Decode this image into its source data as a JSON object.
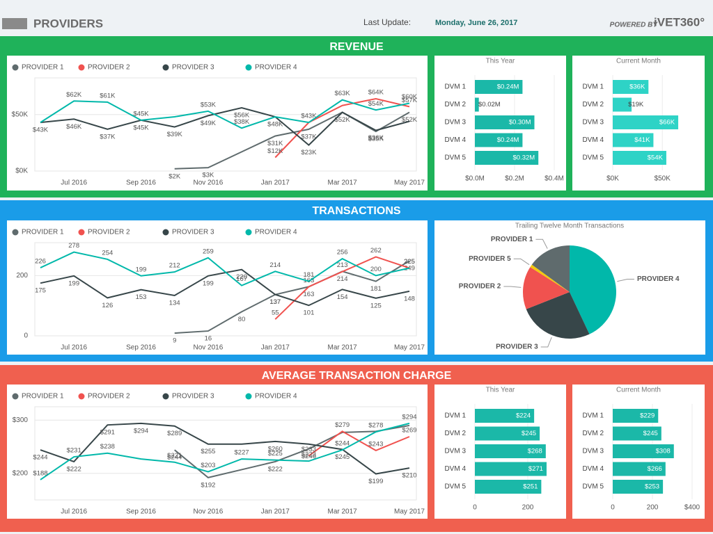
{
  "header": {
    "title": "PROVIDERS",
    "update_label": "Last Update:",
    "update_date": "Monday, June 26, 2017",
    "powered_by": "POWERED BY",
    "brand": "iVET360°"
  },
  "sections": [
    "REVENUE",
    "TRANSACTIONS",
    "AVERAGE TRANSACTION CHARGE"
  ],
  "chart_data": [
    {
      "type": "line",
      "categories": [
        null,
        "Jul 2016",
        null,
        "Sep 2016",
        null,
        "Nov 2016",
        null,
        "Jan 2017",
        null,
        "Mar 2017",
        null,
        "May 2017"
      ],
      "ylim": [
        0,
        80
      ],
      "yticks": [
        {
          "value": 0,
          "label": "$0K"
        },
        {
          "value": 50,
          "label": "$50K"
        }
      ],
      "grid": true,
      "series": [
        {
          "name": "PROVIDER 1",
          "color": "#5f6b6d",
          "values": [
            null,
            null,
            null,
            null,
            2,
            3,
            17,
            31,
            37,
            52,
            35,
            52
          ],
          "value_labels": [
            null,
            null,
            null,
            null,
            "$2K",
            "$3K",
            null,
            "$31K",
            "$37K",
            "$52K",
            "$35K",
            "$52K"
          ]
        },
        {
          "name": "PROVIDER 2",
          "color": "#f0524f",
          "values": [
            null,
            null,
            null,
            null,
            null,
            null,
            null,
            12,
            43,
            58,
            64,
            57
          ],
          "value_labels": [
            null,
            null,
            null,
            null,
            null,
            null,
            null,
            "$12K",
            "$43K",
            null,
            "$64K",
            "$57K"
          ]
        },
        {
          "name": "PROVIDER 3",
          "color": "#374649",
          "values": [
            43,
            46,
            37,
            45,
            39,
            49,
            56,
            48,
            23,
            52,
            36,
            44
          ],
          "value_labels": [
            "$43K",
            "$46K",
            "$37K",
            "$45K",
            "$39K",
            "$49K",
            "$56K",
            "$48K",
            "$23K",
            null,
            "$36K",
            null
          ]
        },
        {
          "name": "PROVIDER 4",
          "color": "#01b8aa",
          "values": [
            43,
            62,
            61,
            45,
            48,
            53,
            38,
            48,
            43,
            63,
            54,
            60
          ],
          "value_labels": [
            null,
            "$62K",
            "$61K",
            "$45K",
            null,
            "$53K",
            "$38K",
            null,
            null,
            "$63K",
            "$54K",
            "$60K"
          ]
        }
      ]
    },
    {
      "type": "hbar",
      "title": "This Year",
      "categories": [
        "DVM 1",
        "DVM 2",
        "DVM 3",
        "DVM 4",
        "DVM 5"
      ],
      "color": "#1bb8a8",
      "values": [
        0.24,
        0.02,
        0.3,
        0.24,
        0.32
      ],
      "value_labels": [
        "$0.24M",
        "$0.02M",
        "$0.30M",
        "$0.24M",
        "$0.32M"
      ],
      "xlim": [
        0,
        0.4
      ],
      "xticks": [
        {
          "value": 0,
          "label": "$0.0M"
        },
        {
          "value": 0.2,
          "label": "$0.2M"
        },
        {
          "value": 0.4,
          "label": "$0.4M"
        }
      ]
    },
    {
      "type": "hbar",
      "title": "Current Month",
      "categories": [
        "DVM 1",
        "DVM 2",
        "DVM 3",
        "DVM 4",
        "DVM 5"
      ],
      "color": "#2ed3c6",
      "values": [
        36,
        19,
        66,
        41,
        54
      ],
      "value_labels": [
        "$36K",
        "$19K",
        "$66K",
        "$41K",
        "$54K"
      ],
      "xlim": [
        0,
        80
      ],
      "xticks": [
        {
          "value": 0,
          "label": "$0K"
        },
        {
          "value": 50,
          "label": "$50K"
        }
      ]
    },
    {
      "type": "line",
      "categories": [
        null,
        "Jul 2016",
        null,
        "Sep 2016",
        null,
        "Nov 2016",
        null,
        "Jan 2017",
        null,
        "Mar 2017",
        null,
        "May 2017"
      ],
      "ylim": [
        0,
        300
      ],
      "yticks": [
        0,
        200
      ],
      "grid": true,
      "series": [
        {
          "name": "PROVIDER 1",
          "color": "#5f6b6d",
          "values": [
            null,
            null,
            null,
            null,
            9,
            16,
            80,
            137,
            163,
            214,
            181,
            249
          ]
        },
        {
          "name": "PROVIDER 2",
          "color": "#f0524f",
          "values": [
            null,
            null,
            null,
            null,
            null,
            null,
            null,
            55,
            163,
            213,
            262,
            225
          ]
        },
        {
          "name": "PROVIDER 3",
          "color": "#374649",
          "values": [
            175,
            199,
            126,
            153,
            134,
            199,
            220,
            137,
            101,
            154,
            125,
            148
          ]
        },
        {
          "name": "PROVIDER 4",
          "color": "#01b8aa",
          "values": [
            226,
            278,
            254,
            199,
            212,
            259,
            167,
            214,
            181,
            256,
            200,
            225
          ]
        }
      ]
    },
    {
      "type": "pie",
      "title": "Trailing Twelve Month Transactions",
      "categories": [
        "PROVIDER 4",
        "PROVIDER 3",
        "PROVIDER 2",
        "PROVIDER 5",
        "PROVIDER 1"
      ],
      "values": [
        43,
        26,
        15,
        1,
        15
      ],
      "colors": [
        "#01b8aa",
        "#374649",
        "#f0524f",
        "#f2c80f",
        "#5f6b6d"
      ]
    },
    {
      "type": "line",
      "categories": [
        null,
        "Jul 2016",
        null,
        "Sep 2016",
        null,
        "Nov 2016",
        null,
        "Jan 2017",
        null,
        "Mar 2017",
        null,
        "May 2017"
      ],
      "ylim": [
        150,
        320
      ],
      "yticks": [
        {
          "value": 200,
          "label": "$200"
        },
        {
          "value": 300,
          "label": "$300"
        }
      ],
      "grid": true,
      "series": [
        {
          "name": "PROVIDER 1",
          "color": "#5f6b6d",
          "values": [
            null,
            null,
            null,
            null,
            244,
            192,
            207,
            222,
            246,
            277,
            279,
            290
          ],
          "value_labels": [
            null,
            null,
            null,
            null,
            "$244",
            "$192",
            null,
            "$222",
            "$246",
            null,
            null,
            null
          ]
        },
        {
          "name": "PROVIDER 2",
          "color": "#f0524f",
          "values": [
            null,
            null,
            null,
            null,
            null,
            null,
            null,
            null,
            233,
            279,
            243,
            269
          ],
          "value_labels": [
            null,
            null,
            null,
            null,
            null,
            null,
            null,
            null,
            "$233",
            "$279",
            "$243",
            "$269"
          ]
        },
        {
          "name": "PROVIDER 3",
          "color": "#374649",
          "values": [
            244,
            222,
            291,
            294,
            289,
            255,
            255,
            260,
            255,
            245,
            199,
            210
          ],
          "value_labels": [
            "$244",
            "$222",
            "$291",
            "$294",
            "$289",
            "$255",
            null,
            "$260",
            null,
            "$245",
            "$199",
            "$210"
          ]
        },
        {
          "name": "PROVIDER 4",
          "color": "#01b8aa",
          "values": [
            188,
            231,
            238,
            227,
            221,
            203,
            227,
            225,
            223,
            244,
            278,
            294
          ],
          "value_labels": [
            "$188",
            "$231",
            "$238",
            null,
            "$221",
            "$203",
            "$227",
            "$225",
            "$223",
            "$244",
            "$278",
            "$294"
          ]
        }
      ]
    },
    {
      "type": "hbar",
      "title": "This Year",
      "categories": [
        "DVM 1",
        "DVM 2",
        "DVM 3",
        "DVM 4",
        "DVM 5"
      ],
      "color": "#1bb8a8",
      "values": [
        224,
        245,
        268,
        271,
        251
      ],
      "value_labels": [
        "$224",
        "$245",
        "$268",
        "$271",
        "$251"
      ],
      "xlim": [
        0,
        300
      ],
      "xticks": [
        0,
        200
      ]
    },
    {
      "type": "hbar",
      "title": "Current Month",
      "categories": [
        "DVM 1",
        "DVM 2",
        "DVM 3",
        "DVM 4",
        "DVM 5"
      ],
      "color": "#1bb8a8",
      "values": [
        229,
        245,
        308,
        266,
        253
      ],
      "value_labels": [
        "$229",
        "$245",
        "$308",
        "$266",
        "$253"
      ],
      "xlim": [
        0,
        400
      ],
      "xticks": [
        0,
        200,
        {
          "value": 400,
          "label": "$400"
        }
      ]
    }
  ]
}
